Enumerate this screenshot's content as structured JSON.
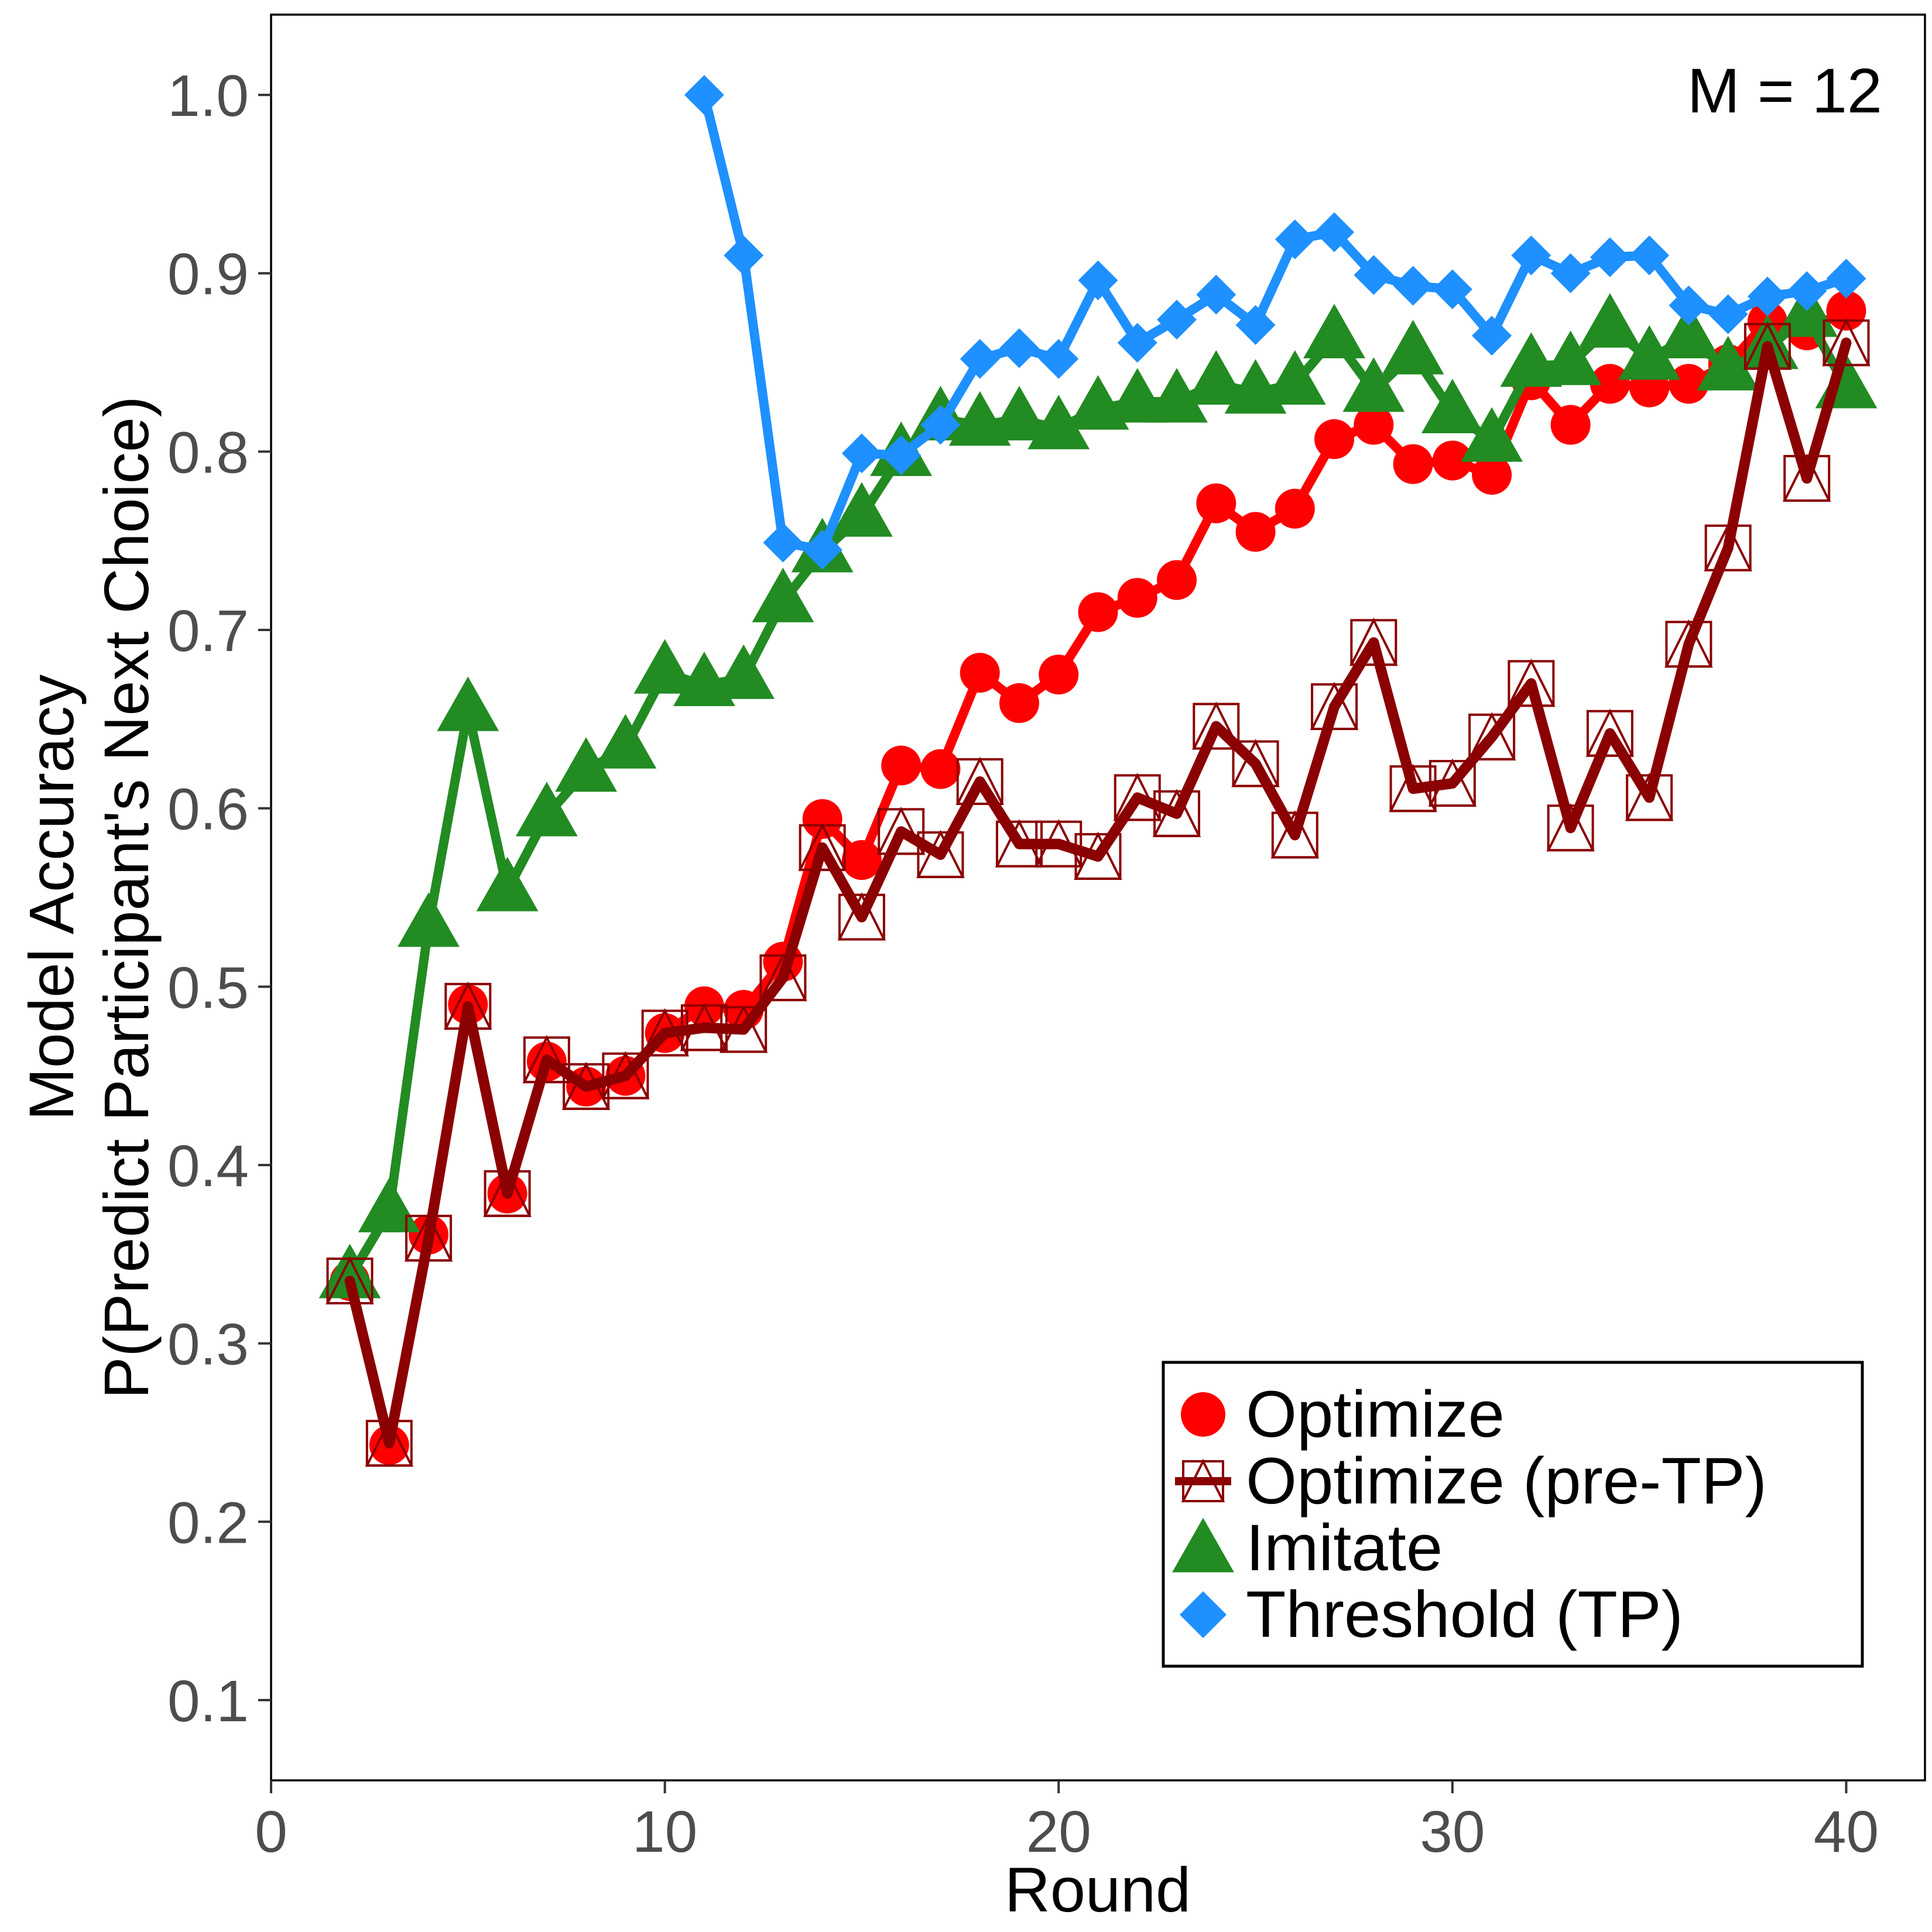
{
  "chart_data": {
    "type": "line",
    "annotation": "M = 12",
    "xlabel": "Round",
    "ylabel_lines": [
      "Model Accuracy",
      "P(Predict Participant's Next Choice)"
    ],
    "xlim": [
      0,
      42
    ],
    "ylim": [
      0.055,
      1.045
    ],
    "xticks": [
      0,
      10,
      20,
      30,
      40
    ],
    "xtick_labels": [
      "0",
      "10",
      "20",
      "30",
      "40"
    ],
    "yticks": [
      0.1,
      0.2,
      0.3,
      0.4,
      0.5,
      0.6,
      0.7,
      0.8,
      0.9,
      1.0
    ],
    "ytick_labels": [
      "0.1",
      "0.2",
      "0.3",
      "0.4",
      "0.5",
      "0.6",
      "0.7",
      "0.8",
      "0.9",
      "1.0"
    ],
    "grid": false,
    "legend_position": "bottom-right",
    "series": [
      {
        "name": "Optimize",
        "color": "#ff0000",
        "marker": "circle",
        "x": [
          2,
          3,
          4,
          5,
          6,
          7,
          8,
          9,
          10,
          11,
          12,
          13,
          14,
          15,
          16,
          17,
          18,
          19,
          20,
          21,
          22,
          23,
          24,
          25,
          26,
          27,
          28,
          29,
          30,
          31,
          32,
          33,
          34,
          35,
          36,
          37,
          38,
          39,
          40
        ],
        "values": [
          0.335,
          0.243,
          0.361,
          0.49,
          0.384,
          0.458,
          0.444,
          0.45,
          0.474,
          0.489,
          0.487,
          0.514,
          0.594,
          0.571,
          0.624,
          0.622,
          0.676,
          0.659,
          0.675,
          0.71,
          0.718,
          0.728,
          0.771,
          0.755,
          0.768,
          0.807,
          0.815,
          0.793,
          0.795,
          0.787,
          0.84,
          0.815,
          0.838,
          0.836,
          0.838,
          0.849,
          0.873,
          0.868,
          0.879
        ]
      },
      {
        "name": "Optimize (pre-TP)",
        "color": "#8b0000",
        "marker": "square-triangle",
        "x": [
          2,
          3,
          4,
          5,
          6,
          7,
          8,
          9,
          10,
          11,
          12,
          13,
          14,
          15,
          16,
          17,
          18,
          19,
          20,
          21,
          22,
          23,
          24,
          25,
          26,
          27,
          28,
          29,
          30,
          31,
          32,
          33,
          34,
          35,
          36,
          37,
          38,
          39,
          40
        ],
        "values": [
          0.335,
          0.244,
          0.359,
          0.489,
          0.384,
          0.459,
          0.444,
          0.45,
          0.474,
          0.477,
          0.476,
          0.505,
          0.578,
          0.539,
          0.587,
          0.574,
          0.615,
          0.58,
          0.58,
          0.573,
          0.606,
          0.597,
          0.646,
          0.625,
          0.585,
          0.657,
          0.693,
          0.611,
          0.614,
          0.64,
          0.67,
          0.589,
          0.642,
          0.606,
          0.692,
          0.746,
          0.859,
          0.785,
          0.861
        ]
      },
      {
        "name": "Imitate",
        "color": "#228b22",
        "marker": "triangle",
        "x": [
          2,
          3,
          4,
          5,
          6,
          7,
          8,
          9,
          10,
          11,
          12,
          13,
          14,
          15,
          16,
          17,
          18,
          19,
          20,
          21,
          22,
          23,
          24,
          25,
          26,
          27,
          28,
          29,
          30,
          31,
          32,
          33,
          34,
          35,
          36,
          37,
          38,
          39,
          40
        ],
        "values": [
          0.337,
          0.374,
          0.534,
          0.655,
          0.554,
          0.596,
          0.621,
          0.634,
          0.676,
          0.669,
          0.673,
          0.716,
          0.744,
          0.764,
          0.798,
          0.818,
          0.815,
          0.818,
          0.813,
          0.824,
          0.828,
          0.828,
          0.838,
          0.833,
          0.838,
          0.864,
          0.834,
          0.855,
          0.822,
          0.806,
          0.848,
          0.849,
          0.87,
          0.852,
          0.864,
          0.846,
          0.858,
          0.876,
          0.836
        ]
      },
      {
        "name": "Threshold (TP)",
        "color": "#1e90ff",
        "marker": "diamond",
        "x": [
          11,
          12,
          13,
          14,
          15,
          16,
          17,
          18,
          19,
          20,
          21,
          22,
          23,
          24,
          25,
          26,
          27,
          28,
          29,
          30,
          31,
          32,
          33,
          34,
          35,
          36,
          37,
          38,
          39,
          40
        ],
        "values": [
          1.0,
          0.91,
          0.749,
          0.745,
          0.799,
          0.798,
          0.815,
          0.852,
          0.858,
          0.852,
          0.896,
          0.861,
          0.874,
          0.888,
          0.871,
          0.919,
          0.923,
          0.899,
          0.893,
          0.891,
          0.865,
          0.91,
          0.9,
          0.909,
          0.91,
          0.882,
          0.877,
          0.887,
          0.89,
          0.897
        ]
      }
    ]
  }
}
